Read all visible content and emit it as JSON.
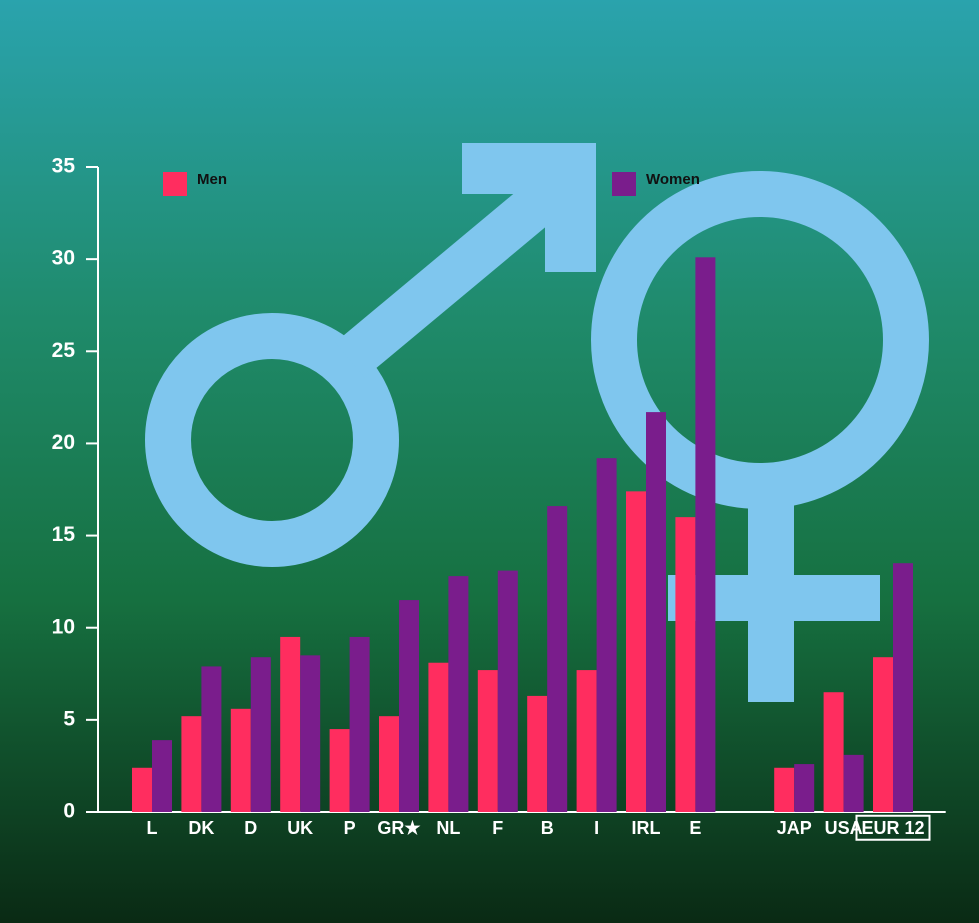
{
  "chart_data": {
    "type": "bar",
    "categories": [
      "L",
      "DK",
      "D",
      "UK",
      "P",
      "GR★",
      "NL",
      "F",
      "B",
      "I",
      "IRL",
      "E",
      null,
      "JAP",
      "USA",
      "EUR 12"
    ],
    "series": [
      {
        "name": "Men",
        "color": "#ff2d5f",
        "values": [
          2.4,
          5.2,
          5.6,
          9.5,
          4.5,
          5.2,
          8.1,
          7.7,
          6.3,
          7.7,
          17.4,
          16.0,
          null,
          2.4,
          6.5,
          8.4
        ]
      },
      {
        "name": "Women",
        "color": "#7a1d8c",
        "values": [
          3.9,
          7.9,
          8.4,
          8.5,
          9.5,
          11.5,
          12.8,
          13.1,
          16.6,
          19.2,
          21.7,
          30.1,
          null,
          2.6,
          3.1,
          13.5
        ]
      }
    ],
    "ylim": [
      0,
      35
    ],
    "yticks": [
      0,
      5,
      10,
      15,
      20,
      25,
      30,
      35
    ]
  }
}
